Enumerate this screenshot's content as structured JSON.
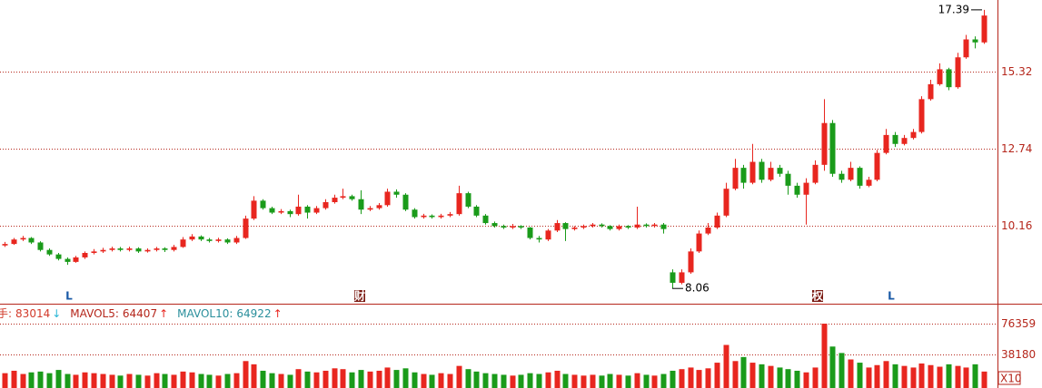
{
  "chart_data": {
    "type": "candlestick",
    "ylim": [
      7.55,
      17.72
    ],
    "yticks": [
      10.16,
      12.74,
      15.32
    ],
    "grid": true,
    "up_color": "#e8261f",
    "down_color": "#1a9b1a",
    "ohlc": [
      [
        9.5,
        9.62,
        9.45,
        9.55
      ],
      [
        9.55,
        9.75,
        9.52,
        9.7
      ],
      [
        9.7,
        9.82,
        9.65,
        9.75
      ],
      [
        9.75,
        9.78,
        9.55,
        9.6
      ],
      [
        9.6,
        9.64,
        9.3,
        9.35
      ],
      [
        9.35,
        9.4,
        9.15,
        9.2
      ],
      [
        9.2,
        9.25,
        9.0,
        9.05
      ],
      [
        9.05,
        9.1,
        8.85,
        8.95
      ],
      [
        8.95,
        9.15,
        8.92,
        9.1
      ],
      [
        9.1,
        9.3,
        9.05,
        9.25
      ],
      [
        9.25,
        9.38,
        9.2,
        9.3
      ],
      [
        9.3,
        9.42,
        9.25,
        9.35
      ],
      [
        9.35,
        9.46,
        9.3,
        9.4
      ],
      [
        9.4,
        9.45,
        9.3,
        9.35
      ],
      [
        9.35,
        9.46,
        9.3,
        9.4
      ],
      [
        9.4,
        9.44,
        9.25,
        9.3
      ],
      [
        9.3,
        9.4,
        9.26,
        9.35
      ],
      [
        9.35,
        9.45,
        9.3,
        9.4
      ],
      [
        9.4,
        9.44,
        9.28,
        9.35
      ],
      [
        9.35,
        9.52,
        9.3,
        9.45
      ],
      [
        9.45,
        9.78,
        9.42,
        9.7
      ],
      [
        9.7,
        9.88,
        9.65,
        9.8
      ],
      [
        9.8,
        9.84,
        9.65,
        9.7
      ],
      [
        9.7,
        9.75,
        9.6,
        9.65
      ],
      [
        9.65,
        9.76,
        9.6,
        9.7
      ],
      [
        9.7,
        9.74,
        9.55,
        9.6
      ],
      [
        9.6,
        9.82,
        9.55,
        9.75
      ],
      [
        9.75,
        10.5,
        9.72,
        10.4
      ],
      [
        10.4,
        11.15,
        10.35,
        11.0
      ],
      [
        11.0,
        11.05,
        10.7,
        10.75
      ],
      [
        10.75,
        10.8,
        10.55,
        10.6
      ],
      [
        10.6,
        10.72,
        10.55,
        10.65
      ],
      [
        10.65,
        10.7,
        10.45,
        10.55
      ],
      [
        10.55,
        11.2,
        10.5,
        10.8
      ],
      [
        10.8,
        10.85,
        10.4,
        10.6
      ],
      [
        10.6,
        10.82,
        10.55,
        10.75
      ],
      [
        10.75,
        11.05,
        10.7,
        10.95
      ],
      [
        10.95,
        11.2,
        10.9,
        11.1
      ],
      [
        11.1,
        11.4,
        11.05,
        11.15
      ],
      [
        11.15,
        11.2,
        11.0,
        11.05
      ],
      [
        11.05,
        11.35,
        10.55,
        10.7
      ],
      [
        10.7,
        10.82,
        10.65,
        10.75
      ],
      [
        10.75,
        10.92,
        10.7,
        10.85
      ],
      [
        10.85,
        11.4,
        10.8,
        11.3
      ],
      [
        11.3,
        11.38,
        11.1,
        11.2
      ],
      [
        11.2,
        11.25,
        10.65,
        10.7
      ],
      [
        10.7,
        10.75,
        10.4,
        10.45
      ],
      [
        10.45,
        10.56,
        10.4,
        10.5
      ],
      [
        10.5,
        10.54,
        10.4,
        10.45
      ],
      [
        10.45,
        10.56,
        10.4,
        10.5
      ],
      [
        10.5,
        10.62,
        10.45,
        10.55
      ],
      [
        10.55,
        11.5,
        10.5,
        11.25
      ],
      [
        11.25,
        11.3,
        10.75,
        10.8
      ],
      [
        10.8,
        10.85,
        10.45,
        10.5
      ],
      [
        10.5,
        10.55,
        10.2,
        10.25
      ],
      [
        10.25,
        10.3,
        10.1,
        10.15
      ],
      [
        10.15,
        10.2,
        10.05,
        10.1
      ],
      [
        10.1,
        10.22,
        10.05,
        10.15
      ],
      [
        10.15,
        10.18,
        10.05,
        10.1
      ],
      [
        10.1,
        10.12,
        9.7,
        9.75
      ],
      [
        9.75,
        9.82,
        9.6,
        9.7
      ],
      [
        9.7,
        10.05,
        9.65,
        10.0
      ],
      [
        10.0,
        10.35,
        9.95,
        10.25
      ],
      [
        10.25,
        10.28,
        9.65,
        10.05
      ],
      [
        10.05,
        10.15,
        10.0,
        10.1
      ],
      [
        10.1,
        10.2,
        10.05,
        10.15
      ],
      [
        10.15,
        10.25,
        10.1,
        10.2
      ],
      [
        10.2,
        10.24,
        10.1,
        10.15
      ],
      [
        10.15,
        10.18,
        10.0,
        10.05
      ],
      [
        10.05,
        10.2,
        10.0,
        10.15
      ],
      [
        10.15,
        10.18,
        10.05,
        10.1
      ],
      [
        10.1,
        10.8,
        10.05,
        10.2
      ],
      [
        10.2,
        10.24,
        10.1,
        10.15
      ],
      [
        10.15,
        10.25,
        10.1,
        10.2
      ],
      [
        10.2,
        10.25,
        9.9,
        10.05
      ],
      [
        8.6,
        8.7,
        8.06,
        8.25
      ],
      [
        8.25,
        8.7,
        8.2,
        8.6
      ],
      [
        8.6,
        9.4,
        8.55,
        9.3
      ],
      [
        9.3,
        10.0,
        9.25,
        9.9
      ],
      [
        9.9,
        10.25,
        9.85,
        10.1
      ],
      [
        10.1,
        10.6,
        10.05,
        10.5
      ],
      [
        10.5,
        11.6,
        10.45,
        11.4
      ],
      [
        11.4,
        12.4,
        11.35,
        12.1
      ],
      [
        12.1,
        12.2,
        11.4,
        11.6
      ],
      [
        11.6,
        12.9,
        11.55,
        12.3
      ],
      [
        12.3,
        12.4,
        11.6,
        11.7
      ],
      [
        11.7,
        12.3,
        11.65,
        12.1
      ],
      [
        12.1,
        12.2,
        11.8,
        11.9
      ],
      [
        11.9,
        12.0,
        11.2,
        11.5
      ],
      [
        11.5,
        11.6,
        11.1,
        11.2
      ],
      [
        11.2,
        11.75,
        10.2,
        11.6
      ],
      [
        11.6,
        12.35,
        11.55,
        12.2
      ],
      [
        12.2,
        14.4,
        12.0,
        13.6
      ],
      [
        13.6,
        13.7,
        11.8,
        11.9
      ],
      [
        11.9,
        12.0,
        11.6,
        11.7
      ],
      [
        11.7,
        12.3,
        11.65,
        12.1
      ],
      [
        12.1,
        12.15,
        11.4,
        11.5
      ],
      [
        11.5,
        11.8,
        11.45,
        11.7
      ],
      [
        11.7,
        12.7,
        11.65,
        12.6
      ],
      [
        12.6,
        13.4,
        12.55,
        13.2
      ],
      [
        13.2,
        13.3,
        12.8,
        12.9
      ],
      [
        12.9,
        13.2,
        12.85,
        13.1
      ],
      [
        13.1,
        13.4,
        13.05,
        13.3
      ],
      [
        13.3,
        14.5,
        13.25,
        14.4
      ],
      [
        14.4,
        15.05,
        14.35,
        14.9
      ],
      [
        14.9,
        15.6,
        14.85,
        15.4
      ],
      [
        15.4,
        15.45,
        14.7,
        14.8
      ],
      [
        14.8,
        15.95,
        14.75,
        15.8
      ],
      [
        15.8,
        16.55,
        15.75,
        16.4
      ],
      [
        16.4,
        16.5,
        16.1,
        16.3
      ],
      [
        16.3,
        17.39,
        16.25,
        17.2
      ]
    ],
    "max_label": 17.39,
    "min_label": 8.06,
    "markers": [
      "L",
      "财",
      "权",
      "L"
    ],
    "volume": [
      15000,
      18000,
      14000,
      16000,
      17000,
      15000,
      19000,
      14000,
      13000,
      16000,
      15000,
      14000,
      13000,
      12000,
      14000,
      13000,
      12000,
      15000,
      14000,
      13000,
      17000,
      16000,
      14000,
      13000,
      12000,
      14000,
      15000,
      30000,
      26000,
      18000,
      15000,
      14000,
      13000,
      20000,
      17000,
      16000,
      18000,
      21000,
      20000,
      16000,
      19000,
      17000,
      18000,
      22000,
      19000,
      21000,
      16000,
      14000,
      13000,
      15000,
      14000,
      24000,
      20000,
      17000,
      15000,
      14000,
      13000,
      12000,
      13000,
      15000,
      14000,
      16000,
      18000,
      14000,
      13000,
      12000,
      13000,
      12000,
      14000,
      13000,
      12000,
      15000,
      13000,
      12000,
      14000,
      18000,
      20000,
      22000,
      19000,
      21000,
      28000,
      50000,
      30000,
      35000,
      28000,
      26000,
      24000,
      22000,
      20000,
      18000,
      16000,
      22000,
      76359,
      48000,
      40000,
      32000,
      28000,
      22000,
      25000,
      30000,
      26000,
      24000,
      22000,
      27000,
      25000,
      23000,
      26000,
      24000,
      22000,
      26000,
      17000
    ],
    "y2lim": [
      0,
      82000
    ],
    "y2ticks": [
      38180,
      76359
    ],
    "y2_unit": "X10",
    "indicators": [
      {
        "label": "手:",
        "value": 83014,
        "arrow": "↓",
        "color": "#d23a2a",
        "arrow_color": "#29b6d6"
      },
      {
        "label": "MAVOL5:",
        "value": 64407,
        "arrow": "↑",
        "color": "#b5261b",
        "arrow_color": "#e8261f"
      },
      {
        "label": "MAVOL10:",
        "value": 64922,
        "arrow": "↑",
        "color": "#2a8f9c",
        "arrow_color": "#e8261f"
      }
    ]
  }
}
